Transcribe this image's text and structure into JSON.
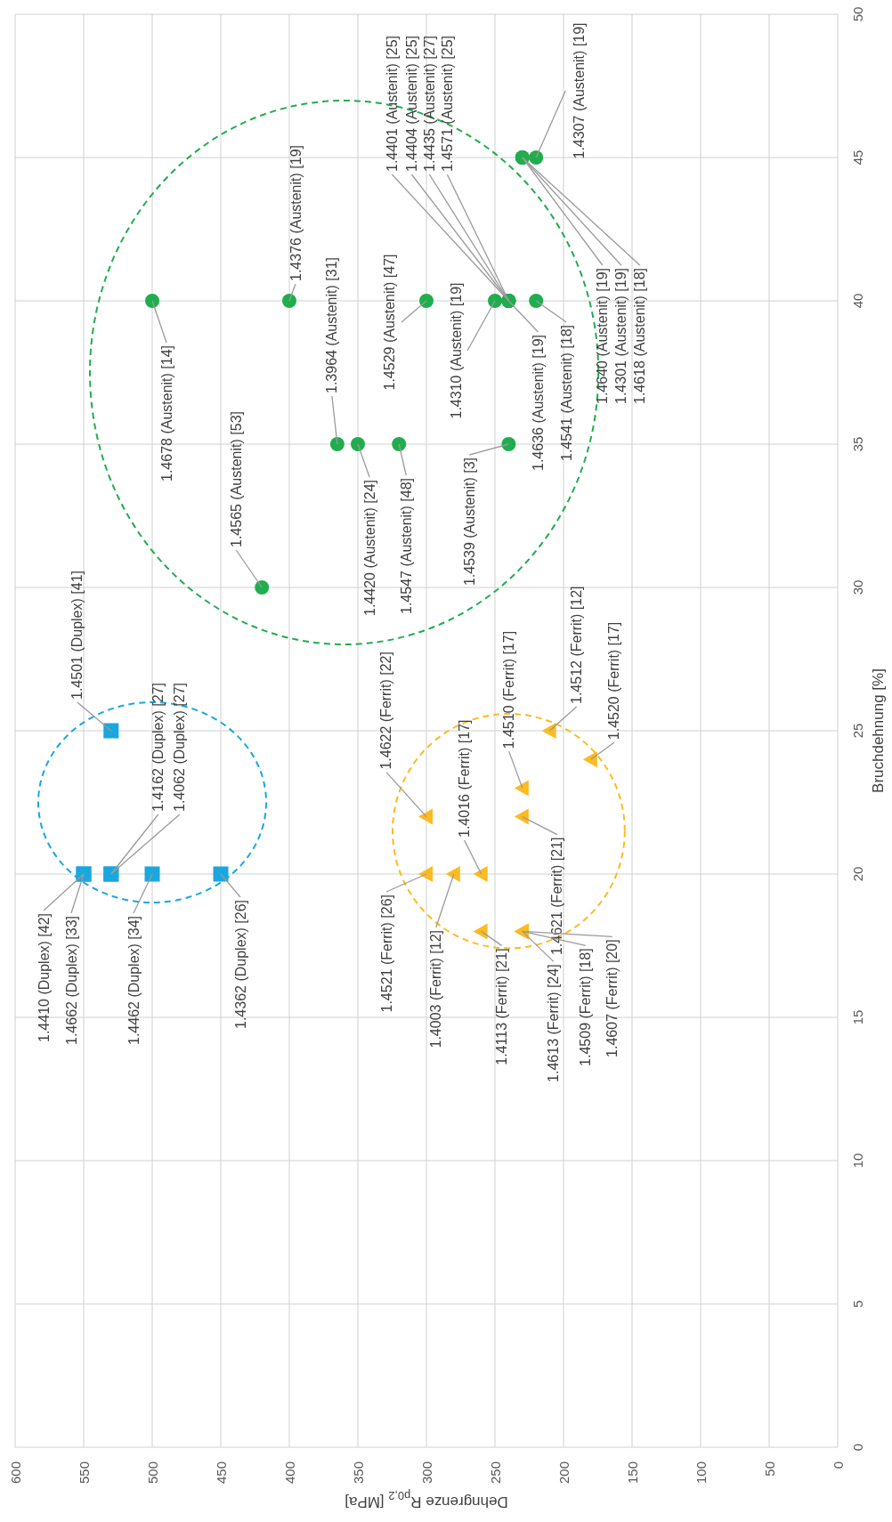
{
  "chart_data": {
    "type": "scatter",
    "xlabel": "Dehngrenze R$_{p0,2}$ [MPa]",
    "ylabel": "Bruchdehnung [%]",
    "xlim": [
      600,
      0
    ],
    "xticks": [
      0,
      50,
      100,
      150,
      200,
      250,
      300,
      350,
      400,
      450,
      500,
      550,
      600
    ],
    "ylim": [
      0,
      50
    ],
    "yticks": [
      0,
      5,
      10,
      15,
      20,
      25,
      30,
      35,
      40,
      45,
      50
    ],
    "grid": true,
    "series": [
      {
        "color": "#1aa7df",
        "marker": "square",
        "x": [
          530,
          550,
          550,
          530,
          530,
          500,
          450
        ],
        "values": [
          25,
          20,
          20,
          20,
          20,
          20,
          20
        ],
        "value_labels": [
          "1.4501 (Duplex) [41]",
          "1.4410 (Duplex) [42]",
          "1.4662 (Duplex) [33]",
          "1.4162 (Duplex) [27]",
          "1.4062 (Duplex) [27]",
          "1.4462 (Duplex) [34]",
          "1.4362 (Duplex) [26]"
        ]
      },
      {
        "color": "#fbbb21",
        "marker": "triangle",
        "x": [
          210,
          180,
          230,
          300,
          230,
          260,
          300,
          280,
          260,
          230,
          230,
          230
        ],
        "values": [
          25,
          24,
          23,
          22,
          22,
          20,
          20,
          20,
          18,
          18,
          18,
          18
        ],
        "value_labels": [
          "1.4512 (Ferrit) [12]",
          "1.4520 (Ferrit) [17]",
          "1.4510 (Ferrit) [17]",
          "1.4622 (Ferrit) [22]",
          "1.4621 (Ferrit) [21]",
          "1.4016 (Ferrit) [17]",
          "1.4521 (Ferrit) [26]",
          "1.4003 (Ferrit) [12]",
          "1.4113 (Ferrit) [21]",
          "1.4613 (Ferrit) [24]",
          "1.4509 (Ferrit) [18]",
          "1.4607 (Ferrit) [20]"
        ]
      },
      {
        "color": "#20ad4e",
        "marker": "circle",
        "x": [
          420,
          365,
          350,
          320,
          240,
          500,
          400,
          300,
          250,
          240,
          240,
          240,
          240,
          240,
          220,
          230,
          230,
          230,
          220
        ],
        "values": [
          30,
          35,
          35,
          35,
          35,
          40,
          40,
          40,
          40,
          40,
          40,
          40,
          40,
          40,
          40,
          45,
          45,
          45,
          45
        ],
        "value_labels": [
          "1.4565 (Austenit) [53]",
          "1.3964 (Austenit) [31]",
          "1.4420 (Austenit) [24]",
          "1.4547 (Austenit) [48]",
          "1.4539 (Austenit) [3]",
          "1.4678 (Austenit) [14]",
          "1.4376 (Austenit) [19]",
          "1.4529 (Austenit) [47]",
          "1.4310 (Austenit) [19]",
          "1.4401 (Austenit) [25]",
          "1.4404 (Austenit) [25]",
          "1.4435 (Austenit) [27]",
          "1.4571 (Austenit) [25]",
          "1.4636 (Austenit) [19]",
          "1.4541 (Austenit) [18]",
          "1.4640 (Austenit) [19]",
          "1.4301 (Austenit) [19]",
          "1.4618 (Austenit) [18]",
          "1.4307 (Austenit) [19]"
        ]
      }
    ]
  }
}
